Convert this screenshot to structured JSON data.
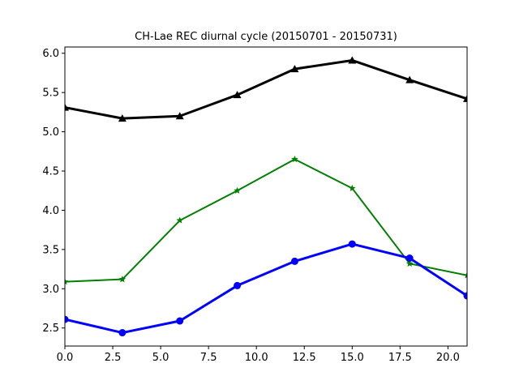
{
  "chart_data": {
    "type": "line",
    "title": "CH-Lae REC diurnal cycle (20150701 - 20150731)",
    "xlabel": "",
    "ylabel": "",
    "xlim": [
      0,
      21
    ],
    "ylim": [
      2.27,
      6.08
    ],
    "grid": false,
    "legend": "none",
    "x": [
      0,
      3,
      6,
      9,
      12,
      15,
      18,
      21
    ],
    "x_ticks": [
      0.0,
      2.5,
      5.0,
      7.5,
      10.0,
      12.5,
      15.0,
      17.5,
      20.0
    ],
    "x_tick_labels": [
      "0.0",
      "2.5",
      "5.0",
      "7.5",
      "10.0",
      "12.5",
      "15.0",
      "17.5",
      "20.0"
    ],
    "y_ticks": [
      2.5,
      3.0,
      3.5,
      4.0,
      4.5,
      5.0,
      5.5,
      6.0
    ],
    "y_tick_labels": [
      "2.5",
      "3.0",
      "3.5",
      "4.0",
      "4.5",
      "5.0",
      "5.5",
      "6.0"
    ],
    "series": [
      {
        "values": [
          5.31,
          5.17,
          5.2,
          5.47,
          5.8,
          5.91,
          5.66,
          5.42
        ],
        "color": "#000000",
        "marker": "triangle",
        "line_width": "thick"
      },
      {
        "values": [
          3.09,
          3.12,
          3.87,
          4.25,
          4.65,
          4.28,
          3.32,
          3.17
        ],
        "color": "#008000",
        "marker": "star",
        "line_width": "medium"
      },
      {
        "values": [
          2.61,
          2.44,
          2.59,
          3.04,
          3.35,
          3.57,
          3.39,
          2.91
        ],
        "color": "#0000ff",
        "marker": "circle",
        "line_width": "thick"
      }
    ]
  }
}
